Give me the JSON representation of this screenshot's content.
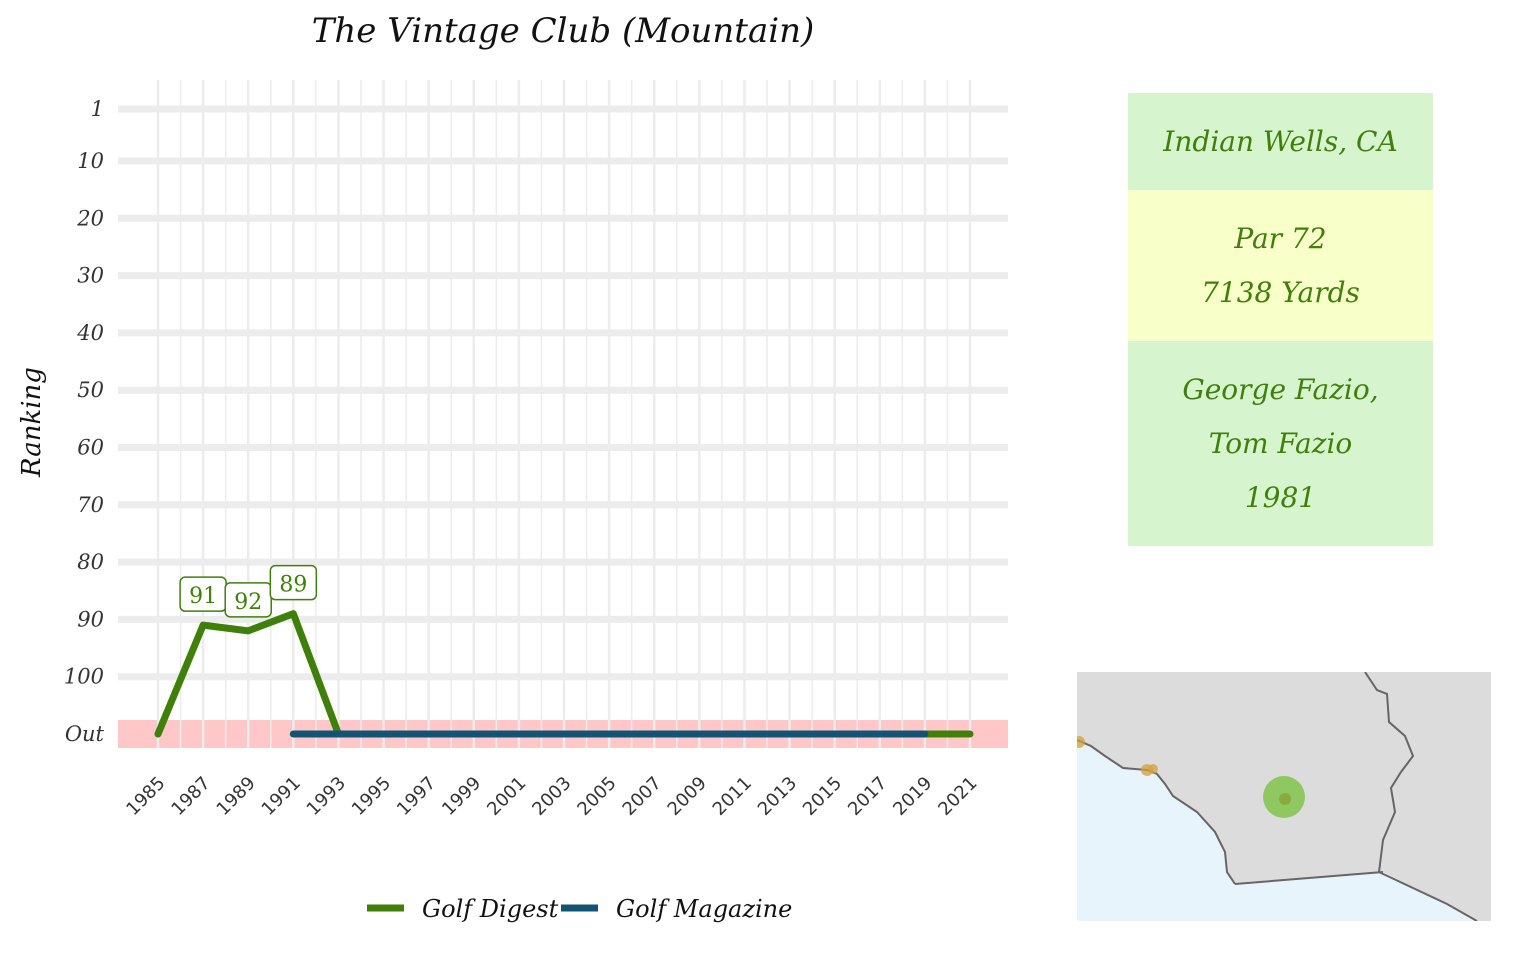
{
  "chart_data": {
    "type": "line",
    "title": "The Vintage Club (Mountain)",
    "ylabel": "Ranking",
    "xlabel": "",
    "y_ticks": [
      "1",
      "10",
      "20",
      "30",
      "40",
      "50",
      "60",
      "70",
      "80",
      "90",
      "100",
      "Out"
    ],
    "y_tick_values": [
      1,
      10,
      20,
      30,
      40,
      50,
      60,
      70,
      80,
      90,
      100,
      110
    ],
    "y_reversed": true,
    "ylim": [
      1,
      110
    ],
    "out_value": 110,
    "x_ticks": [
      "1985",
      "1987",
      "1989",
      "1991",
      "1993",
      "1995",
      "1997",
      "1999",
      "2001",
      "2003",
      "2005",
      "2007",
      "2009",
      "2011",
      "2013",
      "2015",
      "2017",
      "2019",
      "2021"
    ],
    "xlim": [
      1985,
      2021
    ],
    "out_band_color": "#ffc7c7",
    "grid": true,
    "legend_position": "bottom",
    "series": [
      {
        "name": "Golf Digest",
        "color": "#3f7f0a",
        "x": [
          1985,
          1987,
          1989,
          1991,
          1993,
          2021
        ],
        "y": [
          110,
          91,
          92,
          89,
          110,
          110
        ],
        "data_labels": [
          {
            "x": 1987,
            "y": 91,
            "text": "91"
          },
          {
            "x": 1989,
            "y": 92,
            "text": "92"
          },
          {
            "x": 1991,
            "y": 89,
            "text": "89"
          }
        ]
      },
      {
        "name": "Golf Magazine",
        "color": "#135475",
        "x": [
          1991,
          2019
        ],
        "y": [
          110,
          110
        ],
        "data_labels": []
      }
    ]
  },
  "info": {
    "location": "Indian Wells, CA",
    "par": "Par 72",
    "yards": "7138 Yards",
    "architect_1": "George Fazio,",
    "architect_2": "Tom Fazio",
    "year": "1981",
    "text_color": "#3f7f0a"
  },
  "map": {
    "land_color": "#dcdcdc",
    "water_color": "#e8f4fc",
    "course_marker_color": "#7cc242",
    "other_course_color": "#d4a03a"
  }
}
